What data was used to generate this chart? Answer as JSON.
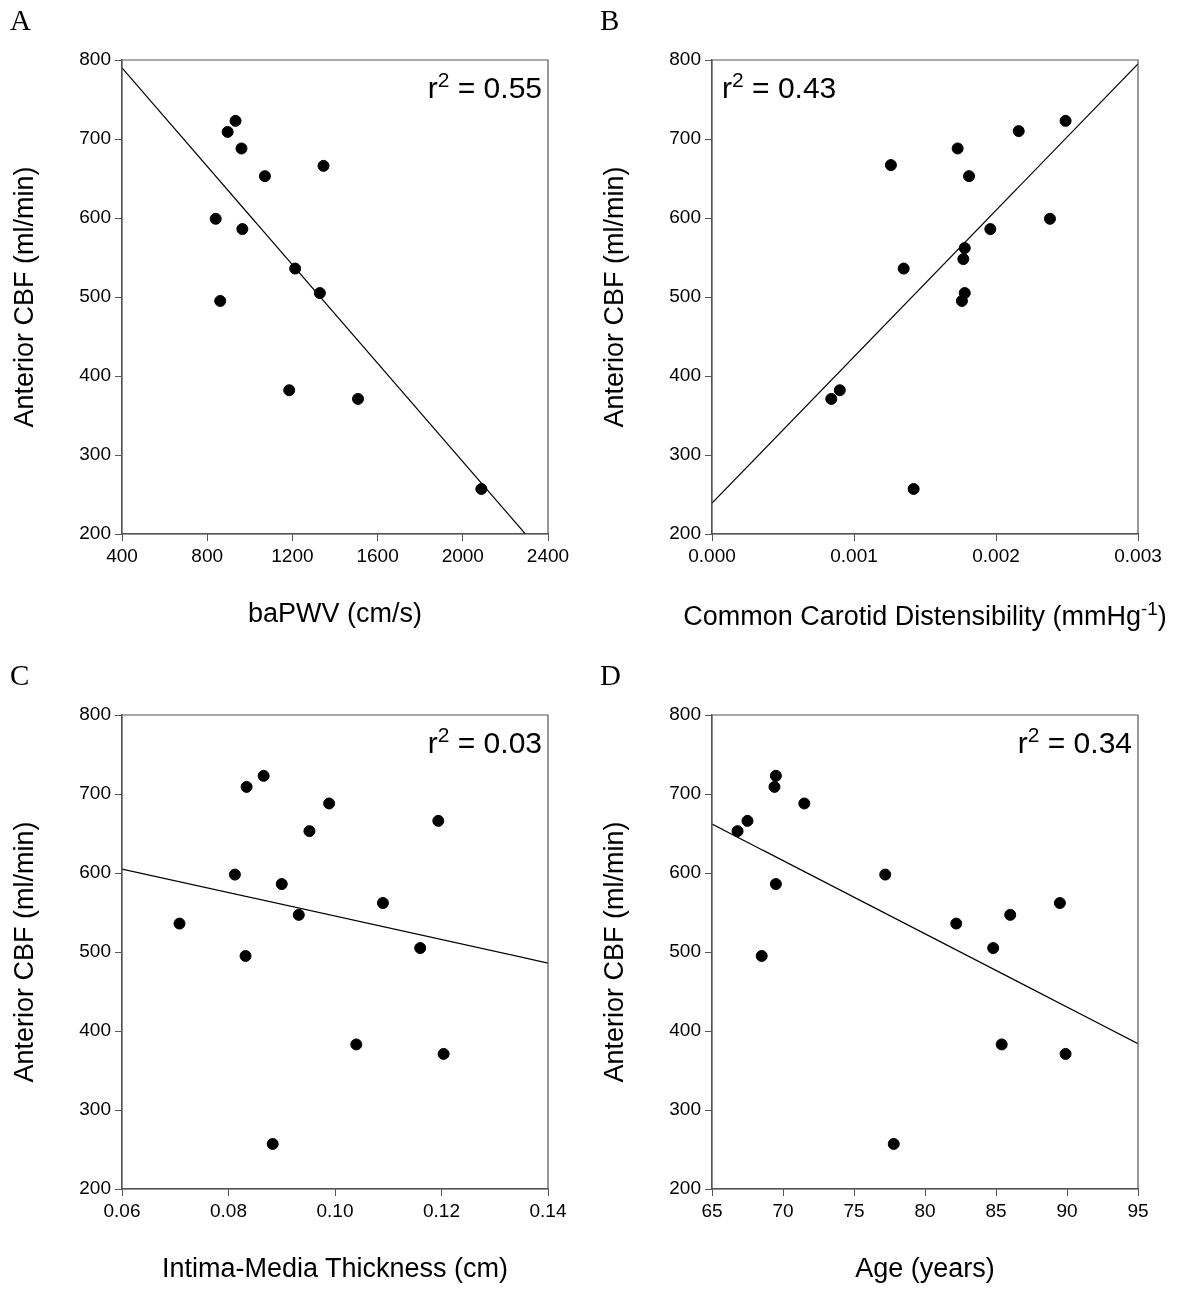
{
  "chart_data": [
    {
      "type": "scatter",
      "title": "A",
      "xlabel": "baPWV (cm/s)",
      "ylabel": "Anterior CBF (ml/min)",
      "xlim": [
        400,
        2400
      ],
      "xticks": [
        400,
        800,
        1200,
        1600,
        2000,
        2400
      ],
      "ylim": [
        200,
        800
      ],
      "yticks": [
        200,
        300,
        400,
        500,
        600,
        700,
        800
      ],
      "grid": false,
      "legend": false,
      "annotations": [
        "r$^{2}$ = 0.55"
      ],
      "series": [
        {
          "marker": "circle",
          "color": "#000000",
          "x": [
            933,
            896,
            961,
            1071,
            1346,
            840,
            965,
            1213,
            1329,
            861,
            1185,
            1508,
            2087
          ],
          "values": [
            723,
            709,
            688,
            653,
            666,
            599,
            586,
            536,
            505,
            495,
            382,
            371,
            257
          ]
        },
        {
          "type": "line",
          "marker": "none",
          "color": "#000000",
          "x": [
            400,
            2294
          ],
          "values": [
            790,
            200
          ]
        }
      ]
    },
    {
      "type": "scatter",
      "title": "B",
      "xlabel": "Common Carotid Distensibility (mmHg$^{-1}$)",
      "ylabel": "Anterior CBF (ml/min)",
      "xlim": [
        0,
        0.003
      ],
      "xticks": [
        {
          "value": 0,
          "label": "0.000"
        },
        {
          "value": 0.001,
          "label": "0.001"
        },
        {
          "value": 0.002,
          "label": "0.002"
        },
        {
          "value": 0.003,
          "label": "0.003"
        }
      ],
      "ylim": [
        200,
        800
      ],
      "yticks": [
        200,
        300,
        400,
        500,
        600,
        700,
        800
      ],
      "grid": false,
      "legend": false,
      "annotations": [
        "r$^{2}$ = 0.43"
      ],
      "series": [
        {
          "marker": "circle",
          "color": "#000000",
          "x": [
            0.00249,
            0.00216,
            0.00173,
            0.00181,
            0.00126,
            0.00238,
            0.00196,
            0.00178,
            0.00177,
            0.00135,
            0.00178,
            0.00176,
            0.0009,
            0.00084,
            0.00142
          ],
          "values": [
            723,
            710,
            688,
            653,
            667,
            599,
            586,
            562,
            548,
            536,
            505,
            495,
            382,
            371,
            257
          ]
        },
        {
          "type": "line",
          "marker": "none",
          "color": "#000000",
          "x": [
            0,
            0.003
          ],
          "values": [
            239,
            795
          ]
        }
      ]
    },
    {
      "type": "scatter",
      "title": "C",
      "xlabel": "Intima-Media Thickness (cm)",
      "ylabel": "Anterior CBF (ml/min)",
      "xlim": [
        0.06,
        0.14
      ],
      "xticks": [
        {
          "value": 0.06,
          "label": "0.06"
        },
        {
          "value": 0.08,
          "label": "0.08"
        },
        {
          "value": 0.1,
          "label": "0.10"
        },
        {
          "value": 0.12,
          "label": "0.12"
        },
        {
          "value": 0.14,
          "label": "0.14"
        }
      ],
      "ylim": [
        200,
        800
      ],
      "yticks": [
        200,
        300,
        400,
        500,
        600,
        700,
        800
      ],
      "grid": false,
      "legend": false,
      "annotations": [
        "r$^{2}$ = 0.03"
      ],
      "series": [
        {
          "marker": "circle",
          "color": "#000000",
          "x": [
            0.0866,
            0.0834,
            0.0989,
            0.0952,
            0.1194,
            0.0812,
            0.09,
            0.109,
            0.0932,
            0.0708,
            0.116,
            0.0832,
            0.104,
            0.1204,
            0.0883
          ],
          "values": [
            723,
            709,
            688,
            653,
            666,
            598,
            586,
            562,
            547,
            536,
            505,
            495,
            383,
            371,
            257
          ]
        },
        {
          "type": "line",
          "marker": "none",
          "color": "#000000",
          "x": [
            0.06,
            0.14
          ],
          "values": [
            605,
            486
          ]
        }
      ]
    },
    {
      "type": "scatter",
      "title": "D",
      "xlabel": "Age (years)",
      "ylabel": "Anterior CBF (ml/min)",
      "xlim": [
        65,
        95
      ],
      "xticks": [
        65,
        70,
        75,
        80,
        85,
        90,
        95
      ],
      "ylim": [
        200,
        800
      ],
      "yticks": [
        200,
        300,
        400,
        500,
        600,
        700,
        800
      ],
      "grid": false,
      "legend": false,
      "annotations": [
        "r$^{2}$ = 0.34"
      ],
      "series": [
        {
          "marker": "circle",
          "color": "#000000",
          "x": [
            69.5,
            69.4,
            71.5,
            67.5,
            66.8,
            77.2,
            69.5,
            89.5,
            86.0,
            82.2,
            84.8,
            68.5,
            85.4,
            89.9,
            77.8
          ],
          "values": [
            723,
            709,
            688,
            666,
            653,
            598,
            586,
            562,
            547,
            536,
            505,
            495,
            383,
            371,
            257
          ]
        },
        {
          "type": "line",
          "marker": "none",
          "color": "#000000",
          "x": [
            65,
            95
          ],
          "values": [
            662,
            384
          ]
        }
      ]
    }
  ]
}
